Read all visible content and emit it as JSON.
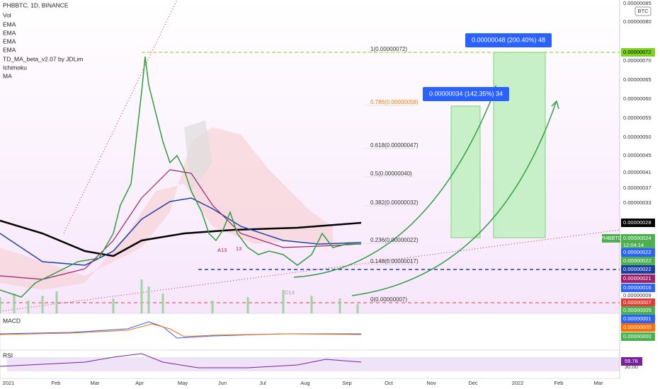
{
  "header": {
    "symbol": "PHBBTC, 1D, BINANCE",
    "indicators": [
      "Vol",
      "EMA",
      "EMA",
      "EMA",
      "EMA",
      "TD_MA_beta_v2.07 by JDLim",
      "Ichimoku",
      "MA"
    ]
  },
  "price_axis": {
    "currency": "BTC",
    "labels": [
      "0.00000085",
      "0.00000080",
      "0.00000072",
      "0.00000070",
      "0.00000065",
      "0.00000060",
      "0.00000055",
      "0.00000050",
      "0.00000045",
      "0.00000041",
      "0.00000037",
      "0.00000033",
      "0.00000028",
      "0.00000024",
      "12:04:14",
      "0.00000022",
      "0.00000022",
      "0.00000022",
      "0.00000021",
      "0.00000016",
      "0.00000009",
      "0.00000007",
      "0.00000005"
    ],
    "symbol_tag": "PHBBTC"
  },
  "fib_levels": [
    "1(0.00000072)",
    "0.786(0.00000058)",
    "0.618(0.00000047)",
    "0.5(0.00000040)",
    "0.382(0.00000032)",
    "0.236(0.00000022)",
    "0.148(0.00000017)",
    "0(0.00000007)"
  ],
  "callouts": [
    "0.00000048 (200.40%) 48",
    "0.00000034 (142.35%) 34"
  ],
  "marks": [
    "A13",
    "13",
    "C13"
  ],
  "macd": {
    "title": "MACD",
    "labels": [
      "0.00000001",
      "0.00000000",
      "0.00000000"
    ]
  },
  "rsi": {
    "title": "RSI",
    "labels": [
      "59.78",
      "30.00"
    ]
  },
  "time_axis": [
    "2021",
    "Feb",
    "Mar",
    "Apr",
    "May",
    "Jun",
    "Jul",
    "Aug",
    "Sep",
    "Oct",
    "Nov",
    "Dec",
    "2022",
    "Feb",
    "Mar"
  ]
}
